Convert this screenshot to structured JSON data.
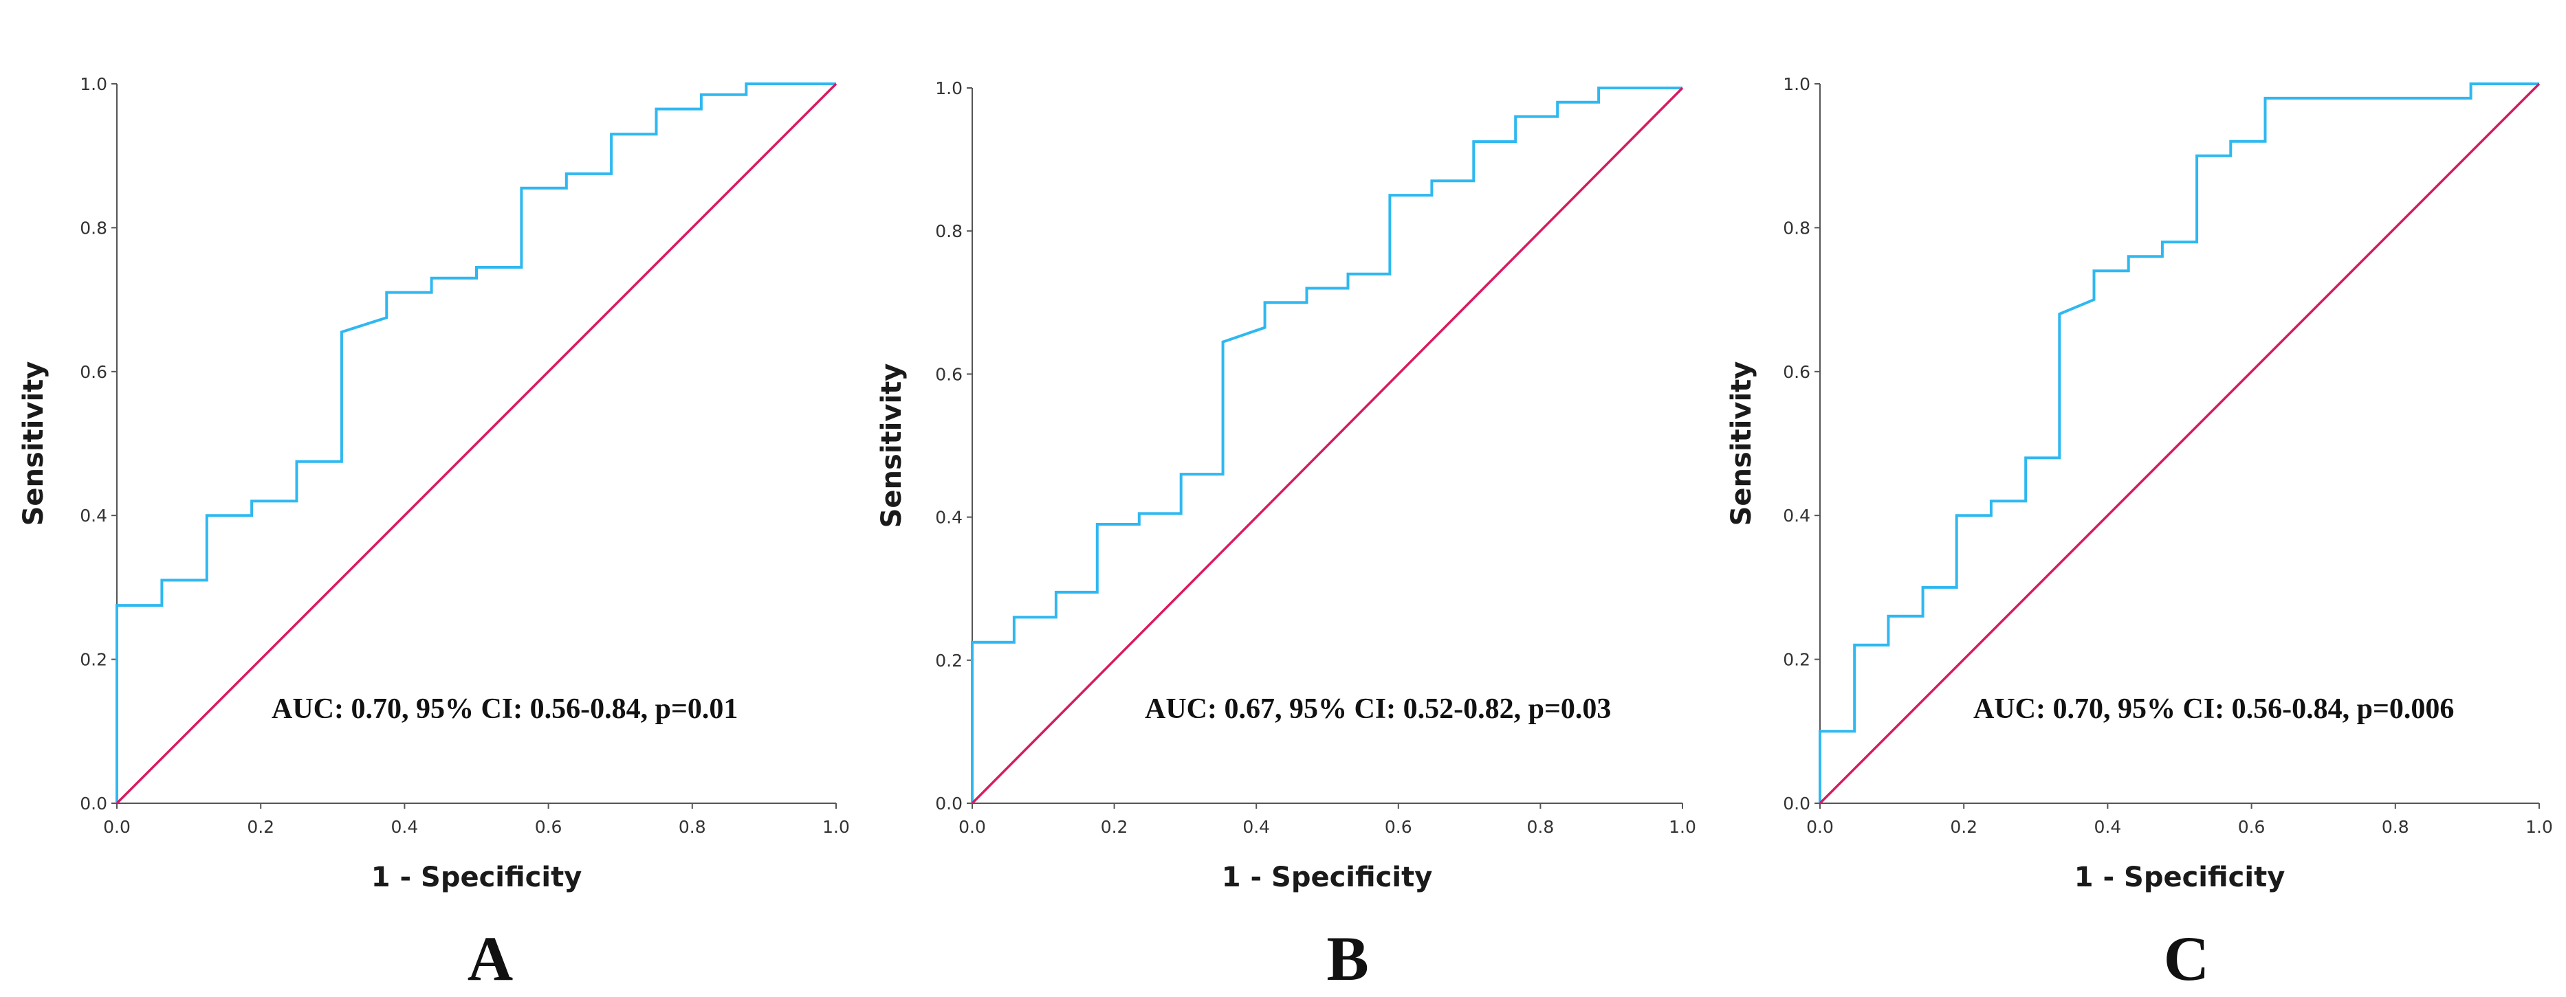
{
  "figure": {
    "panels": [
      "A",
      "B",
      "C"
    ]
  },
  "chart_data": [
    {
      "type": "line",
      "panel_label": "A",
      "xlabel": "1 - Specificity",
      "ylabel": "Sensitivity",
      "xlim": [
        0,
        1
      ],
      "ylim": [
        0,
        1
      ],
      "xticks": [
        "0.0",
        "0.2",
        "0.4",
        "0.6",
        "0.8",
        "1.0"
      ],
      "yticks": [
        "0.0",
        "0.2",
        "0.4",
        "0.6",
        "0.8",
        "1.0"
      ],
      "annotation": "AUC: 0.70, 95% CI: 0.56-0.84, p=0.01",
      "series": [
        {
          "name": "ROC curve",
          "color": "#2fb8f0",
          "x": [
            0,
            0,
            0.0625,
            0.0625,
            0.125,
            0.125,
            0.1875,
            0.1875,
            0.25,
            0.25,
            0.3125,
            0.3125,
            0.375,
            0.375,
            0.4375,
            0.4375,
            0.5,
            0.5,
            0.5625,
            0.5625,
            0.625,
            0.625,
            0.6875,
            0.6875,
            0.75,
            0.75,
            0.8125,
            0.8125,
            0.875,
            0.875,
            1.0
          ],
          "y": [
            0,
            0.275,
            0.275,
            0.31,
            0.31,
            0.4,
            0.4,
            0.42,
            0.42,
            0.475,
            0.475,
            0.655,
            0.675,
            0.71,
            0.71,
            0.73,
            0.73,
            0.745,
            0.745,
            0.855,
            0.855,
            0.875,
            0.875,
            0.93,
            0.93,
            0.965,
            0.965,
            0.985,
            0.985,
            1.0,
            1.0
          ]
        },
        {
          "name": "Reference line",
          "color": "#d81b60",
          "x": [
            0,
            1
          ],
          "y": [
            0,
            1
          ]
        }
      ]
    },
    {
      "type": "line",
      "panel_label": "B",
      "xlabel": "1 - Specificity",
      "ylabel": "Sensitivity",
      "xlim": [
        0,
        1
      ],
      "ylim": [
        0,
        1
      ],
      "xticks": [
        "0.0",
        "0.2",
        "0.4",
        "0.6",
        "0.8",
        "1.0"
      ],
      "yticks": [
        "0.0",
        "0.2",
        "0.4",
        "0.6",
        "0.8",
        "1.0"
      ],
      "annotation": "AUC: 0.67, 95% CI: 0.52-0.82, p=0.03",
      "series": [
        {
          "name": "ROC curve",
          "color": "#2fb8f0",
          "x": [
            0,
            0,
            0.059,
            0.059,
            0.118,
            0.118,
            0.176,
            0.176,
            0.235,
            0.235,
            0.294,
            0.294,
            0.353,
            0.353,
            0.412,
            0.412,
            0.471,
            0.471,
            0.529,
            0.529,
            0.588,
            0.588,
            0.647,
            0.647,
            0.706,
            0.706,
            0.765,
            0.765,
            0.824,
            0.824,
            0.882,
            0.882,
            1.0
          ],
          "y": [
            0,
            0.225,
            0.225,
            0.26,
            0.26,
            0.295,
            0.295,
            0.39,
            0.39,
            0.405,
            0.405,
            0.46,
            0.46,
            0.645,
            0.665,
            0.7,
            0.7,
            0.72,
            0.72,
            0.74,
            0.74,
            0.85,
            0.85,
            0.87,
            0.87,
            0.925,
            0.925,
            0.96,
            0.96,
            0.98,
            0.98,
            1.0,
            1.0
          ]
        },
        {
          "name": "Reference line",
          "color": "#d81b60",
          "x": [
            0,
            1
          ],
          "y": [
            0,
            1
          ]
        }
      ]
    },
    {
      "type": "line",
      "panel_label": "C",
      "xlabel": "1 - Specificity",
      "ylabel": "Sensitivity",
      "xlim": [
        0,
        1
      ],
      "ylim": [
        0,
        1
      ],
      "xticks": [
        "0.0",
        "0.2",
        "0.4",
        "0.6",
        "0.8",
        "1.0"
      ],
      "yticks": [
        "0.0",
        "0.2",
        "0.4",
        "0.6",
        "0.8",
        "1.0"
      ],
      "annotation": "AUC: 0.70, 95% CI: 0.56-0.84, p=0.006",
      "series": [
        {
          "name": "ROC curve",
          "color": "#2fb8f0",
          "x": [
            0,
            0,
            0.048,
            0.048,
            0.095,
            0.095,
            0.143,
            0.143,
            0.19,
            0.19,
            0.238,
            0.238,
            0.286,
            0.286,
            0.333,
            0.333,
            0.381,
            0.381,
            0.429,
            0.429,
            0.476,
            0.476,
            0.524,
            0.524,
            0.571,
            0.571,
            0.619,
            0.619,
            0.905,
            0.905,
            1.0
          ],
          "y": [
            0,
            0.1,
            0.1,
            0.22,
            0.22,
            0.26,
            0.26,
            0.3,
            0.3,
            0.4,
            0.4,
            0.42,
            0.42,
            0.48,
            0.48,
            0.68,
            0.7,
            0.74,
            0.74,
            0.76,
            0.76,
            0.78,
            0.78,
            0.9,
            0.9,
            0.92,
            0.92,
            0.98,
            0.98,
            1.0,
            1.0
          ]
        },
        {
          "name": "Reference line",
          "color": "#d81b60",
          "x": [
            0,
            1
          ],
          "y": [
            0,
            1
          ]
        }
      ]
    }
  ]
}
